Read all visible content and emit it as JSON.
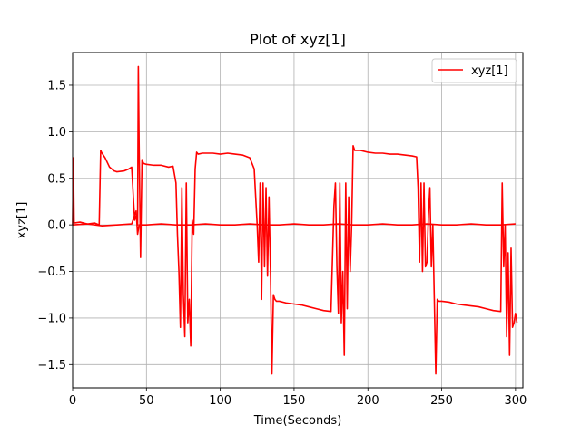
{
  "chart_data": {
    "type": "line",
    "title": "Plot of xyz[1]",
    "xlabel": "Time(Seconds)",
    "ylabel": "xyz[1]",
    "xlim": [
      0,
      305
    ],
    "ylim": [
      -1.75,
      1.85
    ],
    "xticks": [
      0,
      50,
      100,
      150,
      200,
      250,
      300
    ],
    "xtick_labels": [
      "0",
      "50",
      "100",
      "150",
      "200",
      "250",
      "300"
    ],
    "yticks": [
      -1.5,
      -1.0,
      -0.5,
      0.0,
      0.5,
      1.0,
      1.5
    ],
    "ytick_labels": [
      "−1.5",
      "−1.0",
      "−0.5",
      "0.0",
      "0.5",
      "1.0",
      "1.5"
    ],
    "grid": true,
    "legend_position": "top-right",
    "colors": {
      "series": "#ff0000",
      "grid": "#b0b0b0",
      "axes": "#000000"
    },
    "series": [
      {
        "name": "xyz[1]",
        "color": "#ff0000",
        "x": [
          0,
          0.5,
          1,
          5,
          10,
          15,
          18,
          19,
          19.5,
          22,
          25,
          28,
          30,
          35,
          38,
          40,
          42,
          43,
          44,
          44.5,
          45,
          46,
          47,
          48,
          50,
          55,
          60,
          65,
          68,
          70,
          71,
          72,
          73,
          74,
          75,
          76,
          77,
          78,
          79,
          80,
          81,
          82,
          83,
          84,
          85,
          88,
          90,
          95,
          100,
          105,
          110,
          115,
          120,
          123,
          124,
          125,
          126,
          127,
          128,
          129,
          130,
          131,
          132,
          133,
          134,
          135,
          136,
          137,
          138,
          140,
          145,
          150,
          155,
          160,
          165,
          170,
          175,
          177,
          178,
          179,
          180,
          181,
          182,
          183,
          184,
          185,
          186,
          187,
          188,
          189,
          190,
          191,
          195,
          200,
          205,
          210,
          215,
          220,
          225,
          230,
          233,
          234,
          235,
          236,
          237,
          238,
          239,
          240,
          241,
          242,
          243,
          244,
          245,
          246,
          247,
          248,
          250,
          255,
          260,
          265,
          270,
          275,
          280,
          285,
          290,
          291,
          292,
          293,
          294,
          295,
          296,
          297,
          298,
          299,
          300,
          301
        ],
        "y": [
          0.0,
          0.72,
          0.02,
          0.03,
          0.01,
          0.02,
          0.0,
          0.8,
          0.78,
          0.72,
          0.62,
          0.58,
          0.57,
          0.58,
          0.6,
          0.62,
          0.05,
          0.1,
          0.0,
          1.7,
          0.9,
          -0.35,
          0.7,
          0.66,
          0.65,
          0.64,
          0.64,
          0.62,
          0.63,
          0.45,
          -0.1,
          -0.5,
          -1.1,
          0.4,
          -0.75,
          -1.2,
          0.45,
          -1.05,
          -0.8,
          -1.3,
          0.05,
          -0.1,
          0.6,
          0.78,
          0.76,
          0.77,
          0.77,
          0.77,
          0.76,
          0.77,
          0.76,
          0.75,
          0.72,
          0.6,
          0.3,
          0.0,
          -0.4,
          0.45,
          -0.8,
          0.45,
          -0.45,
          0.4,
          -0.55,
          0.3,
          -0.5,
          -1.6,
          -0.75,
          -0.8,
          -0.82,
          -0.82,
          -0.84,
          -0.85,
          -0.86,
          -0.88,
          -0.9,
          -0.92,
          -0.93,
          0.2,
          0.45,
          -0.45,
          -0.95,
          0.45,
          -1.05,
          -0.5,
          -1.4,
          0.45,
          -0.9,
          0.3,
          -0.5,
          0.0,
          0.85,
          0.8,
          0.8,
          0.78,
          0.77,
          0.77,
          0.76,
          0.76,
          0.75,
          0.74,
          0.73,
          0.4,
          -0.4,
          0.45,
          -0.5,
          0.45,
          -0.45,
          -0.4,
          0.1,
          0.4,
          -0.45,
          0.0,
          -0.8,
          -1.6,
          -0.8,
          -0.82,
          -0.82,
          -0.83,
          -0.85,
          -0.86,
          -0.87,
          -0.88,
          -0.9,
          -0.92,
          -0.93,
          0.45,
          -0.45,
          0.0,
          -1.2,
          -0.3,
          -1.4,
          -0.25,
          -1.1,
          -1.05,
          -0.95,
          -1.05
        ]
      },
      {
        "name": "",
        "color": "#ff0000",
        "x": [
          0,
          10,
          20,
          30,
          40,
          43,
          44,
          45,
          47,
          50,
          60,
          70,
          80,
          90,
          100,
          110,
          120,
          130,
          140,
          150,
          160,
          170,
          180,
          190,
          200,
          210,
          220,
          230,
          240,
          250,
          260,
          270,
          280,
          290,
          300
        ],
        "y": [
          0.0,
          0.01,
          -0.01,
          0.0,
          0.01,
          0.15,
          -0.1,
          0.0,
          0.0,
          0.0,
          0.01,
          0.0,
          0.0,
          0.01,
          0.0,
          0.0,
          0.01,
          0.0,
          0.0,
          0.01,
          0.0,
          0.0,
          0.01,
          0.0,
          0.0,
          0.01,
          0.0,
          0.0,
          0.01,
          0.0,
          0.0,
          0.01,
          0.0,
          0.0,
          0.01
        ]
      }
    ]
  }
}
